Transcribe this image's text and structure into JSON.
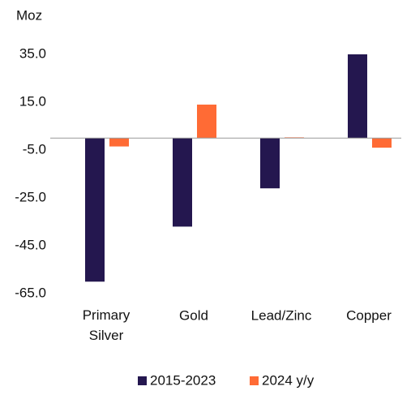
{
  "chart_data": {
    "type": "bar",
    "y_label": "Moz",
    "categories": [
      "Primary Silver",
      "Gold",
      "Lead/Zinc",
      "Copper"
    ],
    "series": [
      {
        "name": "2015-2023",
        "color": "#24174f",
        "values": [
          -60,
          -37,
          -21,
          35
        ]
      },
      {
        "name": "2024 y/y",
        "color": "#ff6b35",
        "values": [
          -3.5,
          14,
          0.3,
          -4
        ]
      }
    ],
    "ylim": [
      -65,
      35
    ],
    "yticks": [
      {
        "value": -65,
        "label": "-65.0"
      },
      {
        "value": -45,
        "label": "-45.0"
      },
      {
        "value": -25,
        "label": "-25.0"
      },
      {
        "value": -5,
        "label": "-5.0"
      },
      {
        "value": 15,
        "label": "15.0"
      },
      {
        "value": 35,
        "label": "35.0"
      }
    ],
    "grid": false,
    "legend": "bottom"
  }
}
